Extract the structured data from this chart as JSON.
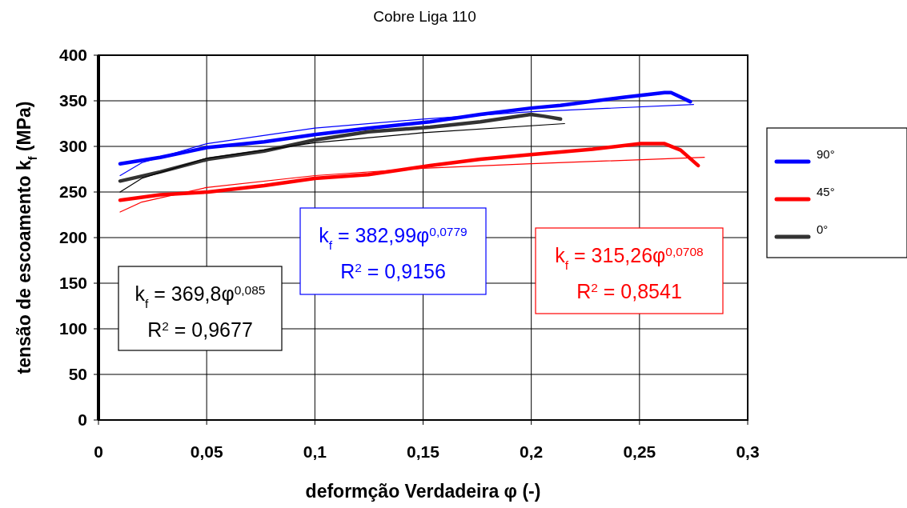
{
  "chart_data": {
    "type": "line",
    "title": "Cobre Liga 110",
    "xlabel": "deformção Verdadeira φ (-)",
    "ylabel": "tensão de escoamento k$_{f}$ (MPa)",
    "xlim": [
      0,
      0.3
    ],
    "ylim": [
      0,
      400
    ],
    "xticks": [
      0,
      {
        "value": 0.05,
        "label": "0,05"
      },
      {
        "value": 0.1,
        "label": "0,1"
      },
      {
        "value": 0.15,
        "label": "0,15"
      },
      {
        "value": 0.2,
        "label": "0,2"
      },
      {
        "value": 0.25,
        "label": "0,25"
      },
      {
        "value": 0.3,
        "label": "0,3"
      }
    ],
    "yticks": [
      0,
      50,
      100,
      150,
      200,
      250,
      300,
      350,
      400
    ],
    "grid": true,
    "legend": "right",
    "line_style": "solid",
    "series": [
      {
        "name": "90°",
        "color": "#0000ff",
        "x": [
          0.01,
          0.0285,
          0.0507,
          0.0766,
          0.0999,
          0.1247,
          0.1532,
          0.1765,
          0.1998,
          0.2135,
          0.2431,
          0.2616,
          0.2646,
          0.2735
        ],
        "values": [
          281,
          288,
          299,
          305,
          313,
          320,
          327,
          335,
          342,
          345,
          354,
          359,
          359,
          349
        ]
      },
      {
        "name": "45°",
        "color": "#ff0000",
        "x": [
          0.01,
          0.0285,
          0.0507,
          0.0766,
          0.0999,
          0.1247,
          0.1532,
          0.1765,
          0.1998,
          0.2283,
          0.2505,
          0.2616,
          0.269,
          0.2771
        ],
        "values": [
          241,
          247,
          250,
          257,
          265,
          269,
          279,
          286,
          291,
          297,
          303,
          303,
          296,
          279
        ]
      },
      {
        "name": "0°",
        "color": "#333333",
        "x": [
          0.01,
          0.0285,
          0.0507,
          0.0766,
          0.0999,
          0.1247,
          0.1532,
          0.1765,
          0.1998,
          0.2061,
          0.2135
        ],
        "values": [
          262,
          272,
          286,
          295,
          307,
          316,
          321,
          327,
          335,
          333,
          330
        ]
      },
      {
        "type": "line",
        "color": "#0000ff",
        "x": [
          0.01,
          0.02,
          0.05,
          0.1,
          0.15,
          0.2,
          0.275
        ],
        "values": [
          268,
          282,
          303,
          320,
          330,
          338,
          346
        ]
      },
      {
        "type": "line",
        "color": "#ff0000",
        "x": [
          0.01,
          0.02,
          0.05,
          0.1,
          0.15,
          0.2,
          0.28
        ],
        "values": [
          228,
          239,
          255,
          268,
          276,
          281,
          288
        ]
      },
      {
        "type": "line",
        "color": "#000000",
        "x": [
          0.01,
          0.02,
          0.05,
          0.1,
          0.15,
          0.2154
        ],
        "values": [
          250,
          265,
          287,
          304,
          315,
          325
        ]
      }
    ],
    "annotations": [
      "k$_{f}$ = 369,8φ$^{0,085}$",
      "R$^{2}$ = 0,9677",
      "k$_{f}$ = 382,99φ$^{0,0779}$",
      "R$^{2}$ = 0,9156",
      "k$_{f}$ = 315,26φ$^{0,0708}$",
      "R$^{2}$ = 0,8541"
    ]
  }
}
